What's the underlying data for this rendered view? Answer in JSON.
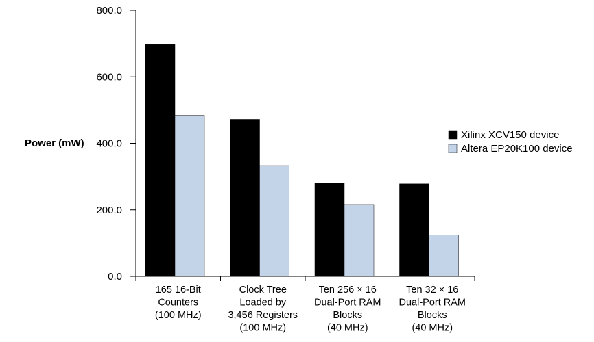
{
  "chart_data": {
    "type": "bar",
    "title": "",
    "ylabel": "Power (mW)",
    "xlabel": "",
    "ylim": [
      0,
      800
    ],
    "yticks": [
      "0.0",
      "200.0",
      "400.0",
      "600.0",
      "800.0"
    ],
    "categories": [
      [
        "165 16-Bit",
        "Counters",
        "(100 MHz)"
      ],
      [
        "Clock Tree",
        "Loaded by",
        "3,456 Registers",
        "(100 MHz)"
      ],
      [
        "Ten 256 × 16",
        "Dual-Port RAM",
        "Blocks",
        "(40 MHz)"
      ],
      [
        "Ten 32 × 16",
        "Dual-Port RAM",
        "Blocks",
        "(40 MHz)"
      ]
    ],
    "series": [
      {
        "name": "Xilinx XCV150 device",
        "color": "#000000",
        "values": [
          697,
          472,
          280,
          278
        ]
      },
      {
        "name": "Altera EP20K100 device",
        "color": "#c4d4e8",
        "values": [
          484,
          333,
          216,
          124
        ]
      }
    ],
    "grid": false,
    "legend": "right"
  }
}
